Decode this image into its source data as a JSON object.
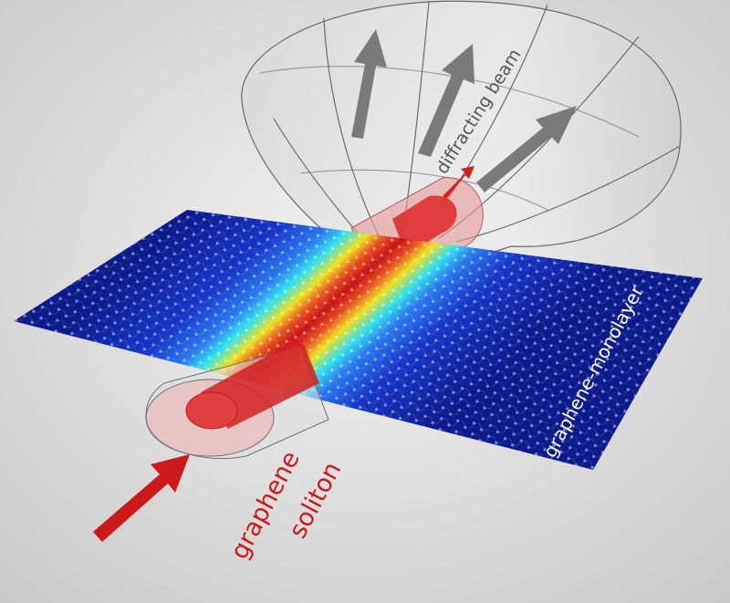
{
  "labels": {
    "beam": "diffracting beam",
    "sheet": "graphene-monolayer",
    "soliton_line1": "graphene",
    "soliton_line2": "soliton"
  }
}
